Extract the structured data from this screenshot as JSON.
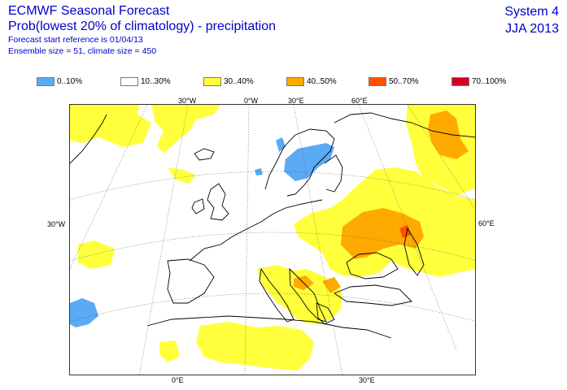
{
  "header": {
    "title": "ECMWF Seasonal Forecast",
    "subtitle": "Prob(lowest 20% of climatology) - precipitation",
    "forecast_start": "Forecast start reference is 01/04/13",
    "ensemble": "Ensemble size = 51, climate size = 450",
    "system": "System 4",
    "season": "JJA 2013"
  },
  "legend": {
    "items": [
      {
        "label": "0..10%",
        "color": "#5aaaf5"
      },
      {
        "label": "10..30%",
        "color": "#ffffff"
      },
      {
        "label": "30..40%",
        "color": "#ffff3c"
      },
      {
        "label": "40..50%",
        "color": "#ffaa00"
      },
      {
        "label": "50..70%",
        "color": "#ff5000"
      },
      {
        "label": "70..100%",
        "color": "#d2001e"
      }
    ]
  },
  "map": {
    "grid_labels": {
      "top_30w": "30°W",
      "top_0w": "0°W",
      "top_30e": "30°E",
      "top_60e": "60°E",
      "left_30w": "30°W",
      "right_60e": "60°E",
      "bottom_0e": "0°E",
      "bottom_30e": "30°E"
    }
  }
}
